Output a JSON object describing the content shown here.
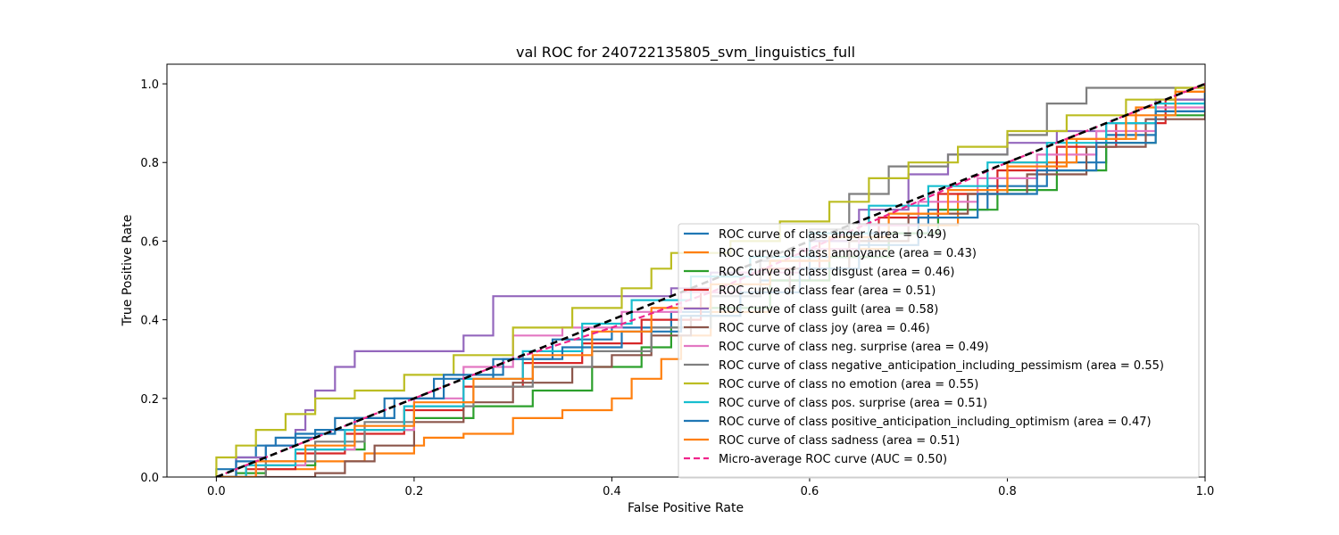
{
  "chart_data": {
    "type": "line",
    "title": "val ROC for 240722135805_svm_linguistics_full",
    "xlabel": "False Positive Rate",
    "ylabel": "True Positive Rate",
    "xlim": [
      -0.05,
      1.0
    ],
    "ylim": [
      0.0,
      1.05
    ],
    "xticks": [
      0.0,
      0.2,
      0.4,
      0.6,
      0.8,
      1.0
    ],
    "xtick_labels": [
      "0.0",
      "0.2",
      "0.4",
      "0.6",
      "0.8",
      "1.0"
    ],
    "yticks": [
      0.0,
      0.2,
      0.4,
      0.6,
      0.8,
      1.0
    ],
    "ytick_labels": [
      "0.0",
      "0.2",
      "0.4",
      "0.6",
      "0.8",
      "1.0"
    ],
    "grid": false,
    "legend_position": "lower-right",
    "series": [
      {
        "name": "ROC curve of class anger (area = 0.49)",
        "color": "#1f77b4",
        "dash": "solid",
        "points": [
          [
            0,
            0
          ],
          [
            0,
            0.02
          ],
          [
            0.02,
            0.05
          ],
          [
            0.04,
            0.08
          ],
          [
            0.06,
            0.1
          ],
          [
            0.1,
            0.12
          ],
          [
            0.14,
            0.15
          ],
          [
            0.18,
            0.2
          ],
          [
            0.22,
            0.25
          ],
          [
            0.28,
            0.3
          ],
          [
            0.34,
            0.35
          ],
          [
            0.4,
            0.38
          ],
          [
            0.46,
            0.42
          ],
          [
            0.5,
            0.46
          ],
          [
            0.55,
            0.5
          ],
          [
            0.6,
            0.56
          ],
          [
            0.66,
            0.62
          ],
          [
            0.72,
            0.68
          ],
          [
            0.78,
            0.74
          ],
          [
            0.84,
            0.8
          ],
          [
            0.9,
            0.87
          ],
          [
            0.95,
            0.93
          ],
          [
            1,
            1
          ]
        ]
      },
      {
        "name": "ROC curve of class annoyance (area = 0.43)",
        "color": "#ff7f0e",
        "dash": "solid",
        "points": [
          [
            0,
            0
          ],
          [
            0.05,
            0.02
          ],
          [
            0.1,
            0.04
          ],
          [
            0.15,
            0.06
          ],
          [
            0.2,
            0.08
          ],
          [
            0.21,
            0.1
          ],
          [
            0.25,
            0.11
          ],
          [
            0.3,
            0.15
          ],
          [
            0.35,
            0.17
          ],
          [
            0.4,
            0.2
          ],
          [
            0.42,
            0.25
          ],
          [
            0.45,
            0.3
          ],
          [
            0.47,
            0.36
          ],
          [
            0.5,
            0.42
          ],
          [
            0.56,
            0.5
          ],
          [
            0.62,
            0.58
          ],
          [
            0.68,
            0.64
          ],
          [
            0.75,
            0.72
          ],
          [
            0.8,
            0.8
          ],
          [
            0.87,
            0.86
          ],
          [
            0.93,
            0.94
          ],
          [
            0.97,
            0.98
          ],
          [
            1,
            1
          ]
        ]
      },
      {
        "name": "ROC curve of class disgust (area = 0.46)",
        "color": "#2ca02c",
        "dash": "solid",
        "points": [
          [
            0,
            0
          ],
          [
            0.02,
            0.01
          ],
          [
            0.05,
            0.03
          ],
          [
            0.1,
            0.07
          ],
          [
            0.15,
            0.12
          ],
          [
            0.2,
            0.15
          ],
          [
            0.26,
            0.18
          ],
          [
            0.32,
            0.22
          ],
          [
            0.38,
            0.28
          ],
          [
            0.43,
            0.33
          ],
          [
            0.46,
            0.38
          ],
          [
            0.5,
            0.43
          ],
          [
            0.56,
            0.5
          ],
          [
            0.62,
            0.56
          ],
          [
            0.68,
            0.62
          ],
          [
            0.73,
            0.68
          ],
          [
            0.79,
            0.73
          ],
          [
            0.85,
            0.78
          ],
          [
            0.9,
            0.85
          ],
          [
            0.95,
            0.92
          ],
          [
            1,
            1
          ]
        ]
      },
      {
        "name": "ROC curve of class fear (area = 0.51)",
        "color": "#d62728",
        "dash": "solid",
        "points": [
          [
            0,
            0
          ],
          [
            0.03,
            0.02
          ],
          [
            0.08,
            0.06
          ],
          [
            0.13,
            0.11
          ],
          [
            0.19,
            0.17
          ],
          [
            0.25,
            0.23
          ],
          [
            0.31,
            0.29
          ],
          [
            0.37,
            0.34
          ],
          [
            0.43,
            0.4
          ],
          [
            0.49,
            0.47
          ],
          [
            0.55,
            0.53
          ],
          [
            0.61,
            0.6
          ],
          [
            0.67,
            0.66
          ],
          [
            0.73,
            0.72
          ],
          [
            0.79,
            0.78
          ],
          [
            0.85,
            0.84
          ],
          [
            0.91,
            0.9
          ],
          [
            0.96,
            0.96
          ],
          [
            1,
            1
          ]
        ]
      },
      {
        "name": "ROC curve of class guilt (area = 0.58)",
        "color": "#9467bd",
        "dash": "solid",
        "points": [
          [
            0,
            0
          ],
          [
            0.02,
            0.05
          ],
          [
            0.05,
            0.08
          ],
          [
            0.08,
            0.12
          ],
          [
            0.09,
            0.17
          ],
          [
            0.1,
            0.22
          ],
          [
            0.12,
            0.28
          ],
          [
            0.14,
            0.32
          ],
          [
            0.22,
            0.32
          ],
          [
            0.25,
            0.36
          ],
          [
            0.28,
            0.4
          ],
          [
            0.28,
            0.46
          ],
          [
            0.4,
            0.46
          ],
          [
            0.46,
            0.48
          ],
          [
            0.5,
            0.52
          ],
          [
            0.55,
            0.55
          ],
          [
            0.6,
            0.6
          ],
          [
            0.65,
            0.68
          ],
          [
            0.7,
            0.77
          ],
          [
            0.74,
            0.82
          ],
          [
            0.8,
            0.85
          ],
          [
            0.85,
            0.88
          ],
          [
            0.9,
            0.9
          ],
          [
            0.95,
            0.96
          ],
          [
            1,
            1
          ]
        ]
      },
      {
        "name": "ROC curve of class joy (area = 0.46)",
        "color": "#8c564b",
        "dash": "solid",
        "points": [
          [
            0,
            0
          ],
          [
            0.05,
            0
          ],
          [
            0.1,
            0.01
          ],
          [
            0.13,
            0.04
          ],
          [
            0.16,
            0.08
          ],
          [
            0.2,
            0.14
          ],
          [
            0.25,
            0.19
          ],
          [
            0.3,
            0.24
          ],
          [
            0.36,
            0.28
          ],
          [
            0.4,
            0.31
          ],
          [
            0.44,
            0.36
          ],
          [
            0.48,
            0.41
          ],
          [
            0.53,
            0.47
          ],
          [
            0.58,
            0.53
          ],
          [
            0.64,
            0.6
          ],
          [
            0.7,
            0.67
          ],
          [
            0.76,
            0.72
          ],
          [
            0.82,
            0.77
          ],
          [
            0.88,
            0.84
          ],
          [
            0.94,
            0.91
          ],
          [
            1,
            1
          ]
        ]
      },
      {
        "name": "ROC curve of class neg. surprise (area = 0.49)",
        "color": "#e377c2",
        "dash": "solid",
        "points": [
          [
            0,
            0
          ],
          [
            0.04,
            0.03
          ],
          [
            0.09,
            0.07
          ],
          [
            0.14,
            0.12
          ],
          [
            0.2,
            0.2
          ],
          [
            0.25,
            0.28
          ],
          [
            0.3,
            0.36
          ],
          [
            0.35,
            0.38
          ],
          [
            0.41,
            0.42
          ],
          [
            0.47,
            0.47
          ],
          [
            0.53,
            0.52
          ],
          [
            0.59,
            0.58
          ],
          [
            0.65,
            0.64
          ],
          [
            0.71,
            0.7
          ],
          [
            0.77,
            0.76
          ],
          [
            0.83,
            0.82
          ],
          [
            0.89,
            0.88
          ],
          [
            0.95,
            0.94
          ],
          [
            1,
            1
          ]
        ]
      },
      {
        "name": "ROC curve of class negative_anticipation_including_pessimism (area = 0.55)",
        "color": "#7f7f7f",
        "dash": "solid",
        "points": [
          [
            0,
            0
          ],
          [
            0.05,
            0.04
          ],
          [
            0.1,
            0.09
          ],
          [
            0.15,
            0.14
          ],
          [
            0.2,
            0.18
          ],
          [
            0.26,
            0.23
          ],
          [
            0.32,
            0.28
          ],
          [
            0.38,
            0.32
          ],
          [
            0.44,
            0.38
          ],
          [
            0.5,
            0.46
          ],
          [
            0.55,
            0.55
          ],
          [
            0.6,
            0.63
          ],
          [
            0.64,
            0.72
          ],
          [
            0.68,
            0.79
          ],
          [
            0.74,
            0.82
          ],
          [
            0.8,
            0.87
          ],
          [
            0.84,
            0.95
          ],
          [
            0.88,
            0.99
          ],
          [
            0.95,
            0.99
          ],
          [
            1,
            1
          ]
        ]
      },
      {
        "name": "ROC curve of class no emotion (area = 0.55)",
        "color": "#bcbd22",
        "dash": "solid",
        "points": [
          [
            0,
            0
          ],
          [
            0,
            0.05
          ],
          [
            0.02,
            0.08
          ],
          [
            0.04,
            0.12
          ],
          [
            0.07,
            0.16
          ],
          [
            0.1,
            0.2
          ],
          [
            0.14,
            0.22
          ],
          [
            0.19,
            0.26
          ],
          [
            0.24,
            0.31
          ],
          [
            0.3,
            0.38
          ],
          [
            0.36,
            0.43
          ],
          [
            0.41,
            0.48
          ],
          [
            0.44,
            0.53
          ],
          [
            0.46,
            0.57
          ],
          [
            0.52,
            0.6
          ],
          [
            0.57,
            0.65
          ],
          [
            0.62,
            0.7
          ],
          [
            0.66,
            0.76
          ],
          [
            0.7,
            0.8
          ],
          [
            0.75,
            0.84
          ],
          [
            0.8,
            0.88
          ],
          [
            0.86,
            0.92
          ],
          [
            0.92,
            0.96
          ],
          [
            0.97,
            0.99
          ],
          [
            1,
            1
          ]
        ]
      },
      {
        "name": "ROC curve of class pos. surprise (area = 0.51)",
        "color": "#17becf",
        "dash": "solid",
        "points": [
          [
            0,
            0
          ],
          [
            0.03,
            0.03
          ],
          [
            0.08,
            0.07
          ],
          [
            0.13,
            0.12
          ],
          [
            0.19,
            0.18
          ],
          [
            0.25,
            0.25
          ],
          [
            0.31,
            0.32
          ],
          [
            0.37,
            0.39
          ],
          [
            0.42,
            0.45
          ],
          [
            0.48,
            0.51
          ],
          [
            0.54,
            0.56
          ],
          [
            0.6,
            0.62
          ],
          [
            0.66,
            0.69
          ],
          [
            0.72,
            0.74
          ],
          [
            0.78,
            0.8
          ],
          [
            0.84,
            0.85
          ],
          [
            0.9,
            0.9
          ],
          [
            0.95,
            0.95
          ],
          [
            1,
            1
          ]
        ]
      },
      {
        "name": "ROC curve of class positive_anticipation_including_optimism (area = 0.47)",
        "color": "#1f77b4",
        "dash": "solid",
        "points": [
          [
            0,
            0
          ],
          [
            0.02,
            0.04
          ],
          [
            0.05,
            0.08
          ],
          [
            0.08,
            0.11
          ],
          [
            0.12,
            0.15
          ],
          [
            0.17,
            0.2
          ],
          [
            0.23,
            0.26
          ],
          [
            0.29,
            0.3
          ],
          [
            0.35,
            0.33
          ],
          [
            0.41,
            0.37
          ],
          [
            0.47,
            0.41
          ],
          [
            0.53,
            0.47
          ],
          [
            0.59,
            0.53
          ],
          [
            0.65,
            0.59
          ],
          [
            0.71,
            0.66
          ],
          [
            0.77,
            0.72
          ],
          [
            0.83,
            0.78
          ],
          [
            0.89,
            0.85
          ],
          [
            0.95,
            0.93
          ],
          [
            1,
            1
          ]
        ]
      },
      {
        "name": "ROC curve of class sadness (area = 0.51)",
        "color": "#ff7f0e",
        "dash": "solid",
        "points": [
          [
            0,
            0
          ],
          [
            0.04,
            0.04
          ],
          [
            0.09,
            0.08
          ],
          [
            0.14,
            0.13
          ],
          [
            0.2,
            0.19
          ],
          [
            0.26,
            0.25
          ],
          [
            0.32,
            0.31
          ],
          [
            0.38,
            0.37
          ],
          [
            0.44,
            0.43
          ],
          [
            0.5,
            0.49
          ],
          [
            0.56,
            0.55
          ],
          [
            0.62,
            0.61
          ],
          [
            0.68,
            0.67
          ],
          [
            0.74,
            0.73
          ],
          [
            0.8,
            0.79
          ],
          [
            0.86,
            0.86
          ],
          [
            0.92,
            0.92
          ],
          [
            0.97,
            0.98
          ],
          [
            1,
            1
          ]
        ]
      },
      {
        "name": "Micro-average ROC curve (AUC = 0.50)",
        "color": "#f0248c",
        "dash": "dashed",
        "points": [
          [
            0,
            0
          ],
          [
            0.1,
            0.1
          ],
          [
            0.2,
            0.2
          ],
          [
            0.3,
            0.3
          ],
          [
            0.4,
            0.38
          ],
          [
            0.5,
            0.47
          ],
          [
            0.6,
            0.58
          ],
          [
            0.7,
            0.69
          ],
          [
            0.8,
            0.8
          ],
          [
            0.9,
            0.9
          ],
          [
            1,
            1
          ]
        ]
      }
    ],
    "reference_line": {
      "points": [
        [
          0,
          0
        ],
        [
          1,
          1
        ]
      ],
      "color": "#000000",
      "dash": "dashed"
    }
  }
}
